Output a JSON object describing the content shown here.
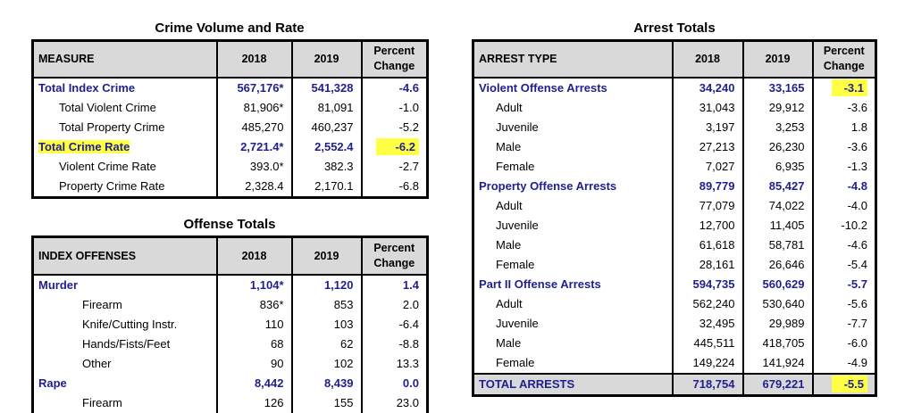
{
  "crime_volume": {
    "title": "Crime Volume and Rate",
    "headers": {
      "measure": "MEASURE",
      "y2018": "2018",
      "y2019": "2019",
      "pct_line1": "Percent",
      "pct_line2": "Change"
    },
    "rows": [
      {
        "label": "Total Index Crime",
        "v2018": "567,176*",
        "v2019": "541,328",
        "pct": "-4.6"
      },
      {
        "label": "Total Violent Crime",
        "v2018": "81,906*",
        "v2019": "81,091",
        "pct": "-1.0"
      },
      {
        "label": "Total Property Crime",
        "v2018": "485,270",
        "v2019": "460,237",
        "pct": "-5.2"
      },
      {
        "label": "Total Crime Rate",
        "v2018": "2,721.4*",
        "v2019": "2,552.4",
        "pct": "-6.2"
      },
      {
        "label": "Violent Crime Rate",
        "v2018": "393.0*",
        "v2019": "382.3",
        "pct": "-2.7"
      },
      {
        "label": "Property Crime Rate",
        "v2018": "2,328.4",
        "v2019": "2,170.1",
        "pct": "-6.8"
      }
    ]
  },
  "offense_totals": {
    "title": "Offense Totals",
    "headers": {
      "offenses": "INDEX OFFENSES",
      "y2018": "2018",
      "y2019": "2019",
      "pct_line1": "Percent",
      "pct_line2": "Change"
    },
    "rows": [
      {
        "label": "Murder",
        "v2018": "1,104*",
        "v2019": "1,120",
        "pct": "1.4"
      },
      {
        "label": "Firearm",
        "v2018": "836*",
        "v2019": "853",
        "pct": "2.0"
      },
      {
        "label": "Knife/Cutting Instr.",
        "v2018": "110",
        "v2019": "103",
        "pct": "-6.4"
      },
      {
        "label": "Hands/Fists/Feet",
        "v2018": "68",
        "v2019": "62",
        "pct": "-8.8"
      },
      {
        "label": "Other",
        "v2018": "90",
        "v2019": "102",
        "pct": "13.3"
      },
      {
        "label": "Rape",
        "v2018": "8,442",
        "v2019": "8,439",
        "pct": "0.0"
      },
      {
        "label": "Firearm",
        "v2018": "126",
        "v2019": "155",
        "pct": "23.0"
      }
    ]
  },
  "arrest_totals": {
    "title": "Arrest Totals",
    "headers": {
      "type": "ARREST TYPE",
      "y2018": "2018",
      "y2019": "2019",
      "pct_line1": "Percent",
      "pct_line2": "Change"
    },
    "rows": [
      {
        "label": "Violent Offense Arrests",
        "v2018": "34,240",
        "v2019": "33,165",
        "pct": "-3.1"
      },
      {
        "label": "Adult",
        "v2018": "31,043",
        "v2019": "29,912",
        "pct": "-3.6"
      },
      {
        "label": "Juvenile",
        "v2018": "3,197",
        "v2019": "3,253",
        "pct": "1.8"
      },
      {
        "label": "Male",
        "v2018": "27,213",
        "v2019": "26,230",
        "pct": "-3.6"
      },
      {
        "label": "Female",
        "v2018": "7,027",
        "v2019": "6,935",
        "pct": "-1.3"
      },
      {
        "label": "Property Offense Arrests",
        "v2018": "89,779",
        "v2019": "85,427",
        "pct": "-4.8"
      },
      {
        "label": "Adult",
        "v2018": "77,079",
        "v2019": "74,022",
        "pct": "-4.0"
      },
      {
        "label": "Juvenile",
        "v2018": "12,700",
        "v2019": "11,405",
        "pct": "-10.2"
      },
      {
        "label": "Male",
        "v2018": "61,618",
        "v2019": "58,781",
        "pct": "-4.6"
      },
      {
        "label": "Female",
        "v2018": "28,161",
        "v2019": "26,646",
        "pct": "-5.4"
      },
      {
        "label": "Part II Offense Arrests",
        "v2018": "594,735",
        "v2019": "560,629",
        "pct": "-5.7"
      },
      {
        "label": "Adult",
        "v2018": "562,240",
        "v2019": "530,640",
        "pct": "-5.6"
      },
      {
        "label": "Juvenile",
        "v2018": "32,495",
        "v2019": "29,989",
        "pct": "-7.7"
      },
      {
        "label": "Male",
        "v2018": "445,511",
        "v2019": "418,705",
        "pct": "-6.0"
      },
      {
        "label": "Female",
        "v2018": "149,224",
        "v2019": "141,924",
        "pct": "-4.9"
      },
      {
        "label": "TOTAL ARRESTS",
        "v2018": "718,754",
        "v2019": "679,221",
        "pct": "-5.5"
      }
    ]
  },
  "colors": {
    "highlight": "#ffff44",
    "header_bg": "#d9d9d9",
    "emphasis_text": "#1f1f8f"
  }
}
